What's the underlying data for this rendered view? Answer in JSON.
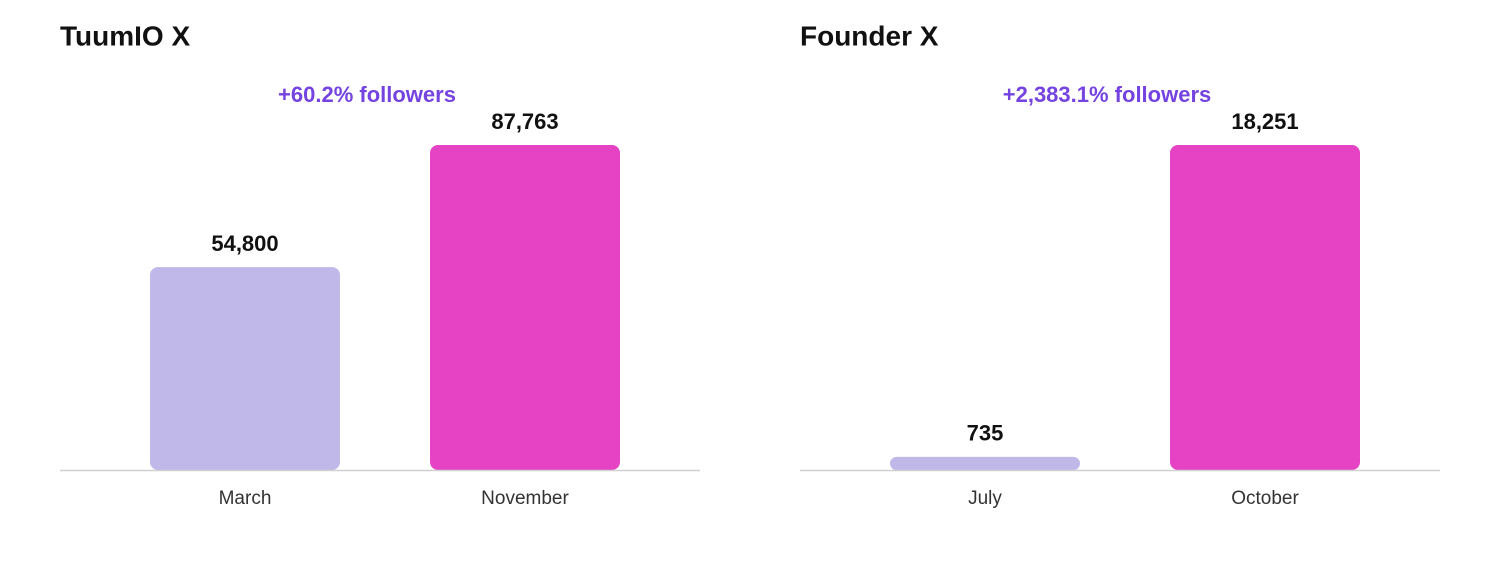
{
  "chart_data": [
    {
      "type": "bar",
      "title": "TuumIO X",
      "annotation": "+60.2% followers",
      "categories": [
        "March",
        "November"
      ],
      "values": [
        54800,
        87763
      ],
      "value_labels": [
        "54,800",
        "87,763"
      ],
      "colors": [
        "#bfb8e8",
        "#e543c3"
      ]
    },
    {
      "type": "bar",
      "title": "Founder X",
      "annotation": "+2,383.1% followers",
      "categories": [
        "July",
        "October"
      ],
      "values": [
        735,
        18251
      ],
      "value_labels": [
        "735",
        "18,251"
      ],
      "colors": [
        "#bfb8e8",
        "#e543c3"
      ]
    }
  ]
}
